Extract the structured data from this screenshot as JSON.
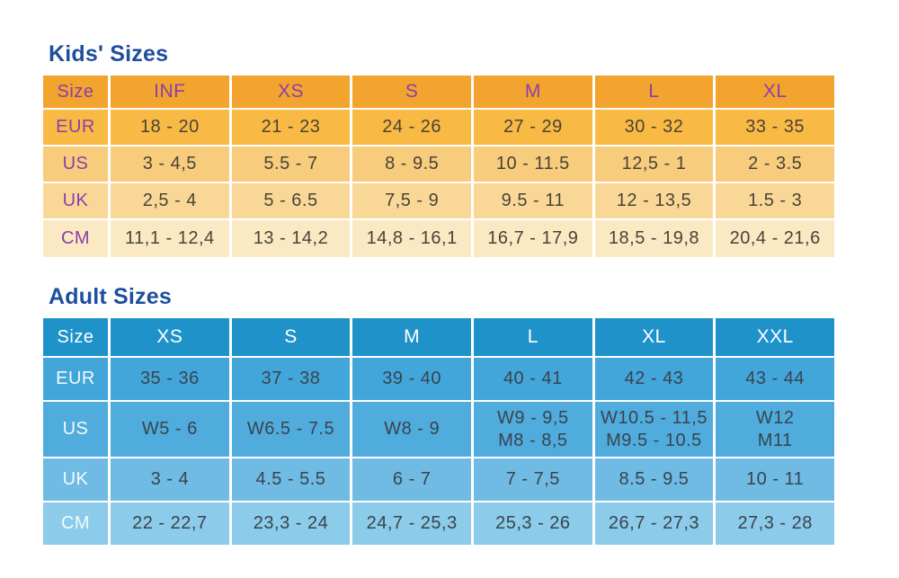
{
  "page": {
    "background": "#ffffff"
  },
  "styles": {
    "title_color": "#1d4f9e",
    "kids": {
      "header_bg": "#f2a42e",
      "header_text": "#8b3fa8",
      "label_text": "#8b3fa8",
      "value_text": "#4a4336",
      "row_bgs": [
        "#f9ba45",
        "#f7cc7d",
        "#f9d897",
        "#fbe9c4"
      ]
    },
    "adult": {
      "header_bg": "#1f92c9",
      "header_text": "#ffffff",
      "label_text": "#f2fafd",
      "value_text": "#39444e",
      "row_bgs": [
        "#42a6da",
        "#4facdd",
        "#6fbbe3",
        "#8ccbe9"
      ]
    }
  },
  "chart_data": [
    {
      "type": "table",
      "title": "Kids' Sizes",
      "corner_label": "Size",
      "columns": [
        "INF",
        "XS",
        "S",
        "M",
        "L",
        "XL"
      ],
      "rows": [
        {
          "label": "EUR",
          "values": [
            "18 - 20",
            "21 - 23",
            "24 - 26",
            "27 - 29",
            "30 - 32",
            "33 - 35"
          ]
        },
        {
          "label": "US",
          "values": [
            "3 - 4,5",
            "5.5 - 7",
            "8 - 9.5",
            "10 - 11.5",
            "12,5 - 1",
            "2 - 3.5"
          ]
        },
        {
          "label": "UK",
          "values": [
            "2,5 - 4",
            "5 - 6.5",
            "7,5 - 9",
            "9.5 - 11",
            "12 - 13,5",
            "1.5 - 3"
          ]
        },
        {
          "label": "CM",
          "values": [
            "11,1 - 12,4",
            "13 - 14,2",
            "14,8 - 16,1",
            "16,7 - 17,9",
            "18,5 - 19,8",
            "20,4 - 21,6"
          ]
        }
      ]
    },
    {
      "type": "table",
      "title": "Adult Sizes",
      "corner_label": "Size",
      "columns": [
        "XS",
        "S",
        "M",
        "L",
        "XL",
        "XXL"
      ],
      "rows": [
        {
          "label": "EUR",
          "values": [
            "35 - 36",
            "37 - 38",
            "39 - 40",
            "40 - 41",
            "42 - 43",
            "43 - 44"
          ]
        },
        {
          "label": "US",
          "values": [
            "W5 - 6",
            "W6.5 - 7.5",
            "W8 - 9",
            "W9 - 9,5\nM8 - 8,5",
            "W10.5 - 11,5\nM9.5 - 10.5",
            "W12\nM11"
          ]
        },
        {
          "label": "UK",
          "values": [
            "3 - 4",
            "4.5 - 5.5",
            "6 - 7",
            "7 - 7,5",
            "8.5 - 9.5",
            "10 - 11"
          ]
        },
        {
          "label": "CM",
          "values": [
            "22 - 22,7",
            "23,3 - 24",
            "24,7 - 25,3",
            "25,3 - 26",
            "26,7 - 27,3",
            "27,3 - 28"
          ]
        }
      ]
    }
  ]
}
